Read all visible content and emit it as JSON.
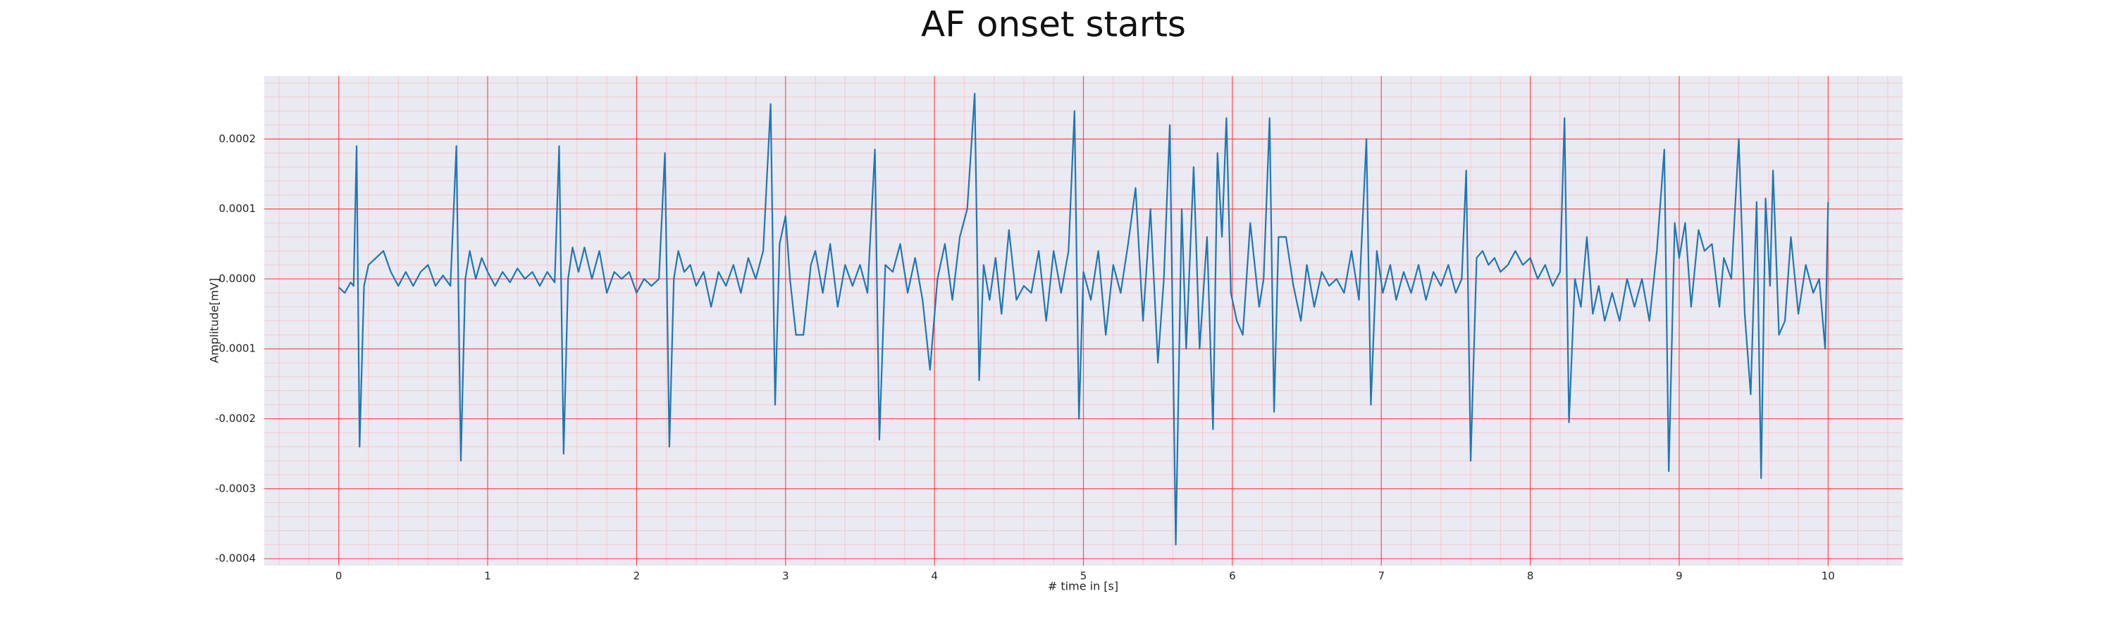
{
  "chart_data": {
    "type": "line",
    "title": "AF onset starts",
    "x_label": "# time in [s]",
    "y_label": "Amplitude[mV]",
    "color": "#1f77b4",
    "grid": true,
    "minor_grid": true,
    "xlim": [
      -0.5,
      10.5
    ],
    "xticks": [
      0,
      1,
      2,
      3,
      4,
      5,
      6,
      7,
      8,
      9,
      10
    ],
    "ylim": [
      -0.00041,
      0.00029
    ],
    "yticks": [
      -0.0004,
      -0.0003,
      -0.0002,
      -0.0001,
      {
        "value": 0,
        "label": "0.0000"
      },
      0.0001,
      0.0002
    ],
    "x": [
      0,
      0.04,
      0.08,
      0.1,
      0.12,
      0.14,
      0.17,
      0.2,
      0.25,
      0.3,
      0.35,
      0.4,
      0.45,
      0.5,
      0.55,
      0.6,
      0.65,
      0.7,
      0.75,
      0.79,
      0.82,
      0.85,
      0.88,
      0.92,
      0.96,
      1.0,
      1.05,
      1.1,
      1.15,
      1.2,
      1.25,
      1.3,
      1.35,
      1.4,
      1.45,
      1.48,
      1.51,
      1.54,
      1.57,
      1.61,
      1.65,
      1.7,
      1.75,
      1.8,
      1.85,
      1.9,
      1.95,
      2.0,
      2.05,
      2.1,
      2.15,
      2.19,
      2.22,
      2.25,
      2.28,
      2.32,
      2.36,
      2.4,
      2.45,
      2.5,
      2.55,
      2.6,
      2.65,
      2.7,
      2.75,
      2.8,
      2.85,
      2.9,
      2.93,
      2.96,
      3.0,
      3.03,
      3.07,
      3.12,
      3.17,
      3.2,
      3.25,
      3.3,
      3.35,
      3.4,
      3.45,
      3.5,
      3.55,
      3.6,
      3.63,
      3.67,
      3.72,
      3.77,
      3.82,
      3.87,
      3.92,
      3.97,
      4.02,
      4.07,
      4.12,
      4.17,
      4.22,
      4.27,
      4.3,
      4.33,
      4.37,
      4.41,
      4.45,
      4.5,
      4.55,
      4.6,
      4.65,
      4.7,
      4.75,
      4.8,
      4.85,
      4.9,
      4.94,
      4.97,
      5.0,
      5.05,
      5.1,
      5.15,
      5.2,
      5.25,
      5.3,
      5.35,
      5.4,
      5.45,
      5.5,
      5.54,
      5.58,
      5.62,
      5.66,
      5.69,
      5.74,
      5.78,
      5.83,
      5.87,
      5.9,
      5.93,
      5.96,
      5.99,
      6.03,
      6.07,
      6.12,
      6.18,
      6.21,
      6.25,
      6.28,
      6.31,
      6.36,
      6.41,
      6.46,
      6.5,
      6.55,
      6.6,
      6.65,
      6.7,
      6.75,
      6.8,
      6.85,
      6.9,
      6.93,
      6.97,
      7.01,
      7.06,
      7.1,
      7.15,
      7.2,
      7.25,
      7.3,
      7.35,
      7.4,
      7.45,
      7.5,
      7.54,
      7.57,
      7.6,
      7.64,
      7.68,
      7.72,
      7.76,
      7.8,
      7.85,
      7.9,
      7.95,
      8.0,
      8.05,
      8.1,
      8.15,
      8.2,
      8.23,
      8.26,
      8.3,
      8.34,
      8.38,
      8.42,
      8.46,
      8.5,
      8.55,
      8.6,
      8.65,
      8.7,
      8.75,
      8.8,
      8.85,
      8.9,
      8.93,
      8.97,
      9.0,
      9.04,
      9.08,
      9.13,
      9.17,
      9.22,
      9.27,
      9.3,
      9.35,
      9.4,
      9.44,
      9.48,
      9.52,
      9.55,
      9.58,
      9.61,
      9.63,
      9.67,
      9.71,
      9.75,
      9.8,
      9.85,
      9.9,
      9.94,
      9.98,
      10.0
    ],
    "values": [
      -1.2e-05,
      -2e-05,
      -5e-06,
      -1e-05,
      0.00019,
      -0.00024,
      -1e-05,
      2e-05,
      3e-05,
      4e-05,
      1e-05,
      -1e-05,
      1e-05,
      -1e-05,
      1e-05,
      2e-05,
      -1e-05,
      5e-06,
      -1e-05,
      0.00019,
      -0.00026,
      0.0,
      4e-05,
      0.0,
      3e-05,
      1e-05,
      -1e-05,
      1e-05,
      -5e-06,
      1.5e-05,
      0.0,
      1e-05,
      -1e-05,
      1e-05,
      -5e-06,
      0.00019,
      -0.00025,
      0.0,
      4.5e-05,
      1e-05,
      4.5e-05,
      0.0,
      4e-05,
      -2e-05,
      1e-05,
      0.0,
      1e-05,
      -2e-05,
      0.0,
      -1e-05,
      0.0,
      0.00018,
      -0.00024,
      0.0,
      4e-05,
      1e-05,
      2e-05,
      -1e-05,
      1e-05,
      -4e-05,
      1e-05,
      -1e-05,
      2e-05,
      -2e-05,
      3e-05,
      0.0,
      4e-05,
      0.00025,
      -0.00018,
      5e-05,
      9e-05,
      0.0,
      -8e-05,
      -8e-05,
      2e-05,
      4e-05,
      -2e-05,
      5e-05,
      -4e-05,
      2e-05,
      -1e-05,
      2e-05,
      -2e-05,
      0.000185,
      -0.00023,
      2e-05,
      1e-05,
      5e-05,
      -2e-05,
      3e-05,
      -3e-05,
      -0.00013,
      0.0,
      5e-05,
      -3e-05,
      6e-05,
      0.0001,
      0.000265,
      -0.000145,
      2e-05,
      -3e-05,
      3e-05,
      -5e-05,
      7e-05,
      -3e-05,
      -1e-05,
      -2e-05,
      4e-05,
      -6e-05,
      4e-05,
      -2e-05,
      4e-05,
      0.00024,
      -0.0002,
      1e-05,
      -3e-05,
      4e-05,
      -8e-05,
      2e-05,
      -2e-05,
      5e-05,
      0.00013,
      -6e-05,
      0.0001,
      -0.00012,
      0.0,
      0.00022,
      -0.00038,
      0.0001,
      -0.0001,
      0.00016,
      -0.0001,
      6e-05,
      -0.000215,
      0.00018,
      6e-05,
      0.00023,
      -2e-05,
      -6e-05,
      -8e-05,
      8e-05,
      -4e-05,
      0.0,
      0.00023,
      -0.00019,
      6e-05,
      6e-05,
      -1e-05,
      -6e-05,
      2e-05,
      -4e-05,
      1e-05,
      -1e-05,
      0.0,
      -2e-05,
      4e-05,
      -3e-05,
      0.0002,
      -0.00018,
      4e-05,
      -2e-05,
      2e-05,
      -3e-05,
      1e-05,
      -2e-05,
      2e-05,
      -3e-05,
      1e-05,
      -1e-05,
      2e-05,
      -2e-05,
      0.0,
      0.000155,
      -0.00026,
      3e-05,
      4e-05,
      2e-05,
      3e-05,
      1e-05,
      2e-05,
      4e-05,
      2e-05,
      3e-05,
      0.0,
      2e-05,
      -1e-05,
      1e-05,
      0.00023,
      -0.000205,
      0.0,
      -4e-05,
      6e-05,
      -5e-05,
      -1e-05,
      -6e-05,
      -2e-05,
      -6e-05,
      0.0,
      -4e-05,
      0.0,
      -6e-05,
      4e-05,
      0.000185,
      -0.000275,
      8e-05,
      3e-05,
      8e-05,
      -4e-05,
      7e-05,
      4e-05,
      5e-05,
      -4e-05,
      3e-05,
      0.0,
      0.0002,
      -5e-05,
      -0.000165,
      0.00011,
      -0.000285,
      0.000115,
      -1e-05,
      0.000155,
      -8e-05,
      -6e-05,
      6e-05,
      -5e-05,
      2e-05,
      -2e-05,
      0.0,
      -0.0001,
      0.00011
    ]
  }
}
